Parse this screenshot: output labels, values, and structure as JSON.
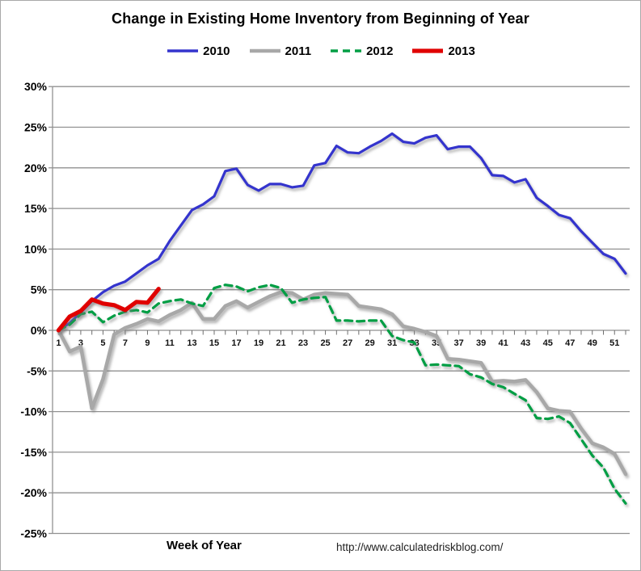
{
  "chart_data": {
    "type": "line",
    "title": "Change in Existing Home Inventory from Beginning of Year",
    "xlabel": "Week of Year",
    "footer": "http://www.calculatedriskblog.com/",
    "legend_position": "top",
    "grid": "horizontal",
    "grid_color": "#919191",
    "xlim": [
      1,
      52
    ],
    "ylim": [
      -25,
      30
    ],
    "y_ticks": [
      30,
      25,
      20,
      15,
      10,
      5,
      0,
      -5,
      -10,
      -15,
      -20,
      -25
    ],
    "y_tick_suffix": "%",
    "x_ticks": [
      1,
      3,
      5,
      7,
      9,
      11,
      13,
      15,
      17,
      19,
      21,
      23,
      25,
      27,
      29,
      31,
      33,
      35,
      37,
      39,
      41,
      43,
      45,
      47,
      49,
      51
    ],
    "series": [
      {
        "name": "2010",
        "color": "#3434cd",
        "width": 3.2,
        "dash": "",
        "start_week": 1,
        "values": [
          0,
          0.9,
          2.2,
          3.6,
          4.7,
          5.5,
          6.0,
          7.0,
          8.0,
          8.8,
          11.0,
          12.9,
          14.8,
          15.5,
          16.5,
          19.6,
          19.9,
          17.9,
          17.2,
          18.0,
          18.0,
          17.6,
          17.8,
          20.3,
          20.6,
          22.7,
          21.9,
          21.8,
          22.6,
          23.3,
          24.2,
          23.2,
          23.0,
          23.7,
          24.0,
          22.3,
          22.6,
          22.6,
          21.2,
          19.1,
          19.0,
          18.2,
          18.6,
          16.3,
          15.3,
          14.2,
          13.8,
          12.2,
          10.8,
          9.4,
          8.8,
          7.0
        ]
      },
      {
        "name": "2011",
        "color": "#a8a8a8",
        "width": 4.5,
        "dash": "",
        "start_week": 1,
        "values": [
          0,
          -2.6,
          -2.0,
          -9.6,
          -6.0,
          -0.5,
          0.3,
          0.8,
          1.4,
          1.1,
          1.9,
          2.5,
          3.4,
          1.4,
          1.4,
          3.0,
          3.6,
          2.8,
          3.5,
          4.2,
          4.7,
          4.6,
          3.8,
          4.4,
          4.6,
          4.5,
          4.4,
          3.0,
          2.8,
          2.6,
          2.0,
          0.5,
          0.2,
          -0.2,
          -0.7,
          -3.5,
          -3.6,
          -3.8,
          -4.0,
          -6.3,
          -6.2,
          -6.3,
          -6.1,
          -7.6,
          -9.6,
          -9.9,
          -10.0,
          -12.1,
          -13.9,
          -14.4,
          -15.2,
          -17.7
        ]
      },
      {
        "name": "2012",
        "color": "#009e44",
        "width": 3.2,
        "dash": "9 6",
        "start_week": 1,
        "values": [
          0,
          0.7,
          2.0,
          2.3,
          1.0,
          1.8,
          2.3,
          2.5,
          2.2,
          3.3,
          3.6,
          3.8,
          3.3,
          3.0,
          5.2,
          5.6,
          5.4,
          4.8,
          5.3,
          5.6,
          5.2,
          3.4,
          3.8,
          4.0,
          4.1,
          1.2,
          1.2,
          1.1,
          1.2,
          1.2,
          -0.7,
          -1.2,
          -1.5,
          -4.3,
          -4.2,
          -4.3,
          -4.4,
          -5.4,
          -5.8,
          -6.6,
          -7.0,
          -7.8,
          -8.6,
          -10.8,
          -10.9,
          -10.6,
          -11.4,
          -13.4,
          -15.4,
          -16.9,
          -19.5,
          -21.3
        ]
      },
      {
        "name": "2013",
        "color": "#e00000",
        "width": 5.2,
        "dash": "",
        "start_week": 1,
        "values": [
          0,
          1.7,
          2.4,
          3.8,
          3.3,
          3.1,
          2.5,
          3.5,
          3.4,
          5.1
        ]
      }
    ]
  }
}
